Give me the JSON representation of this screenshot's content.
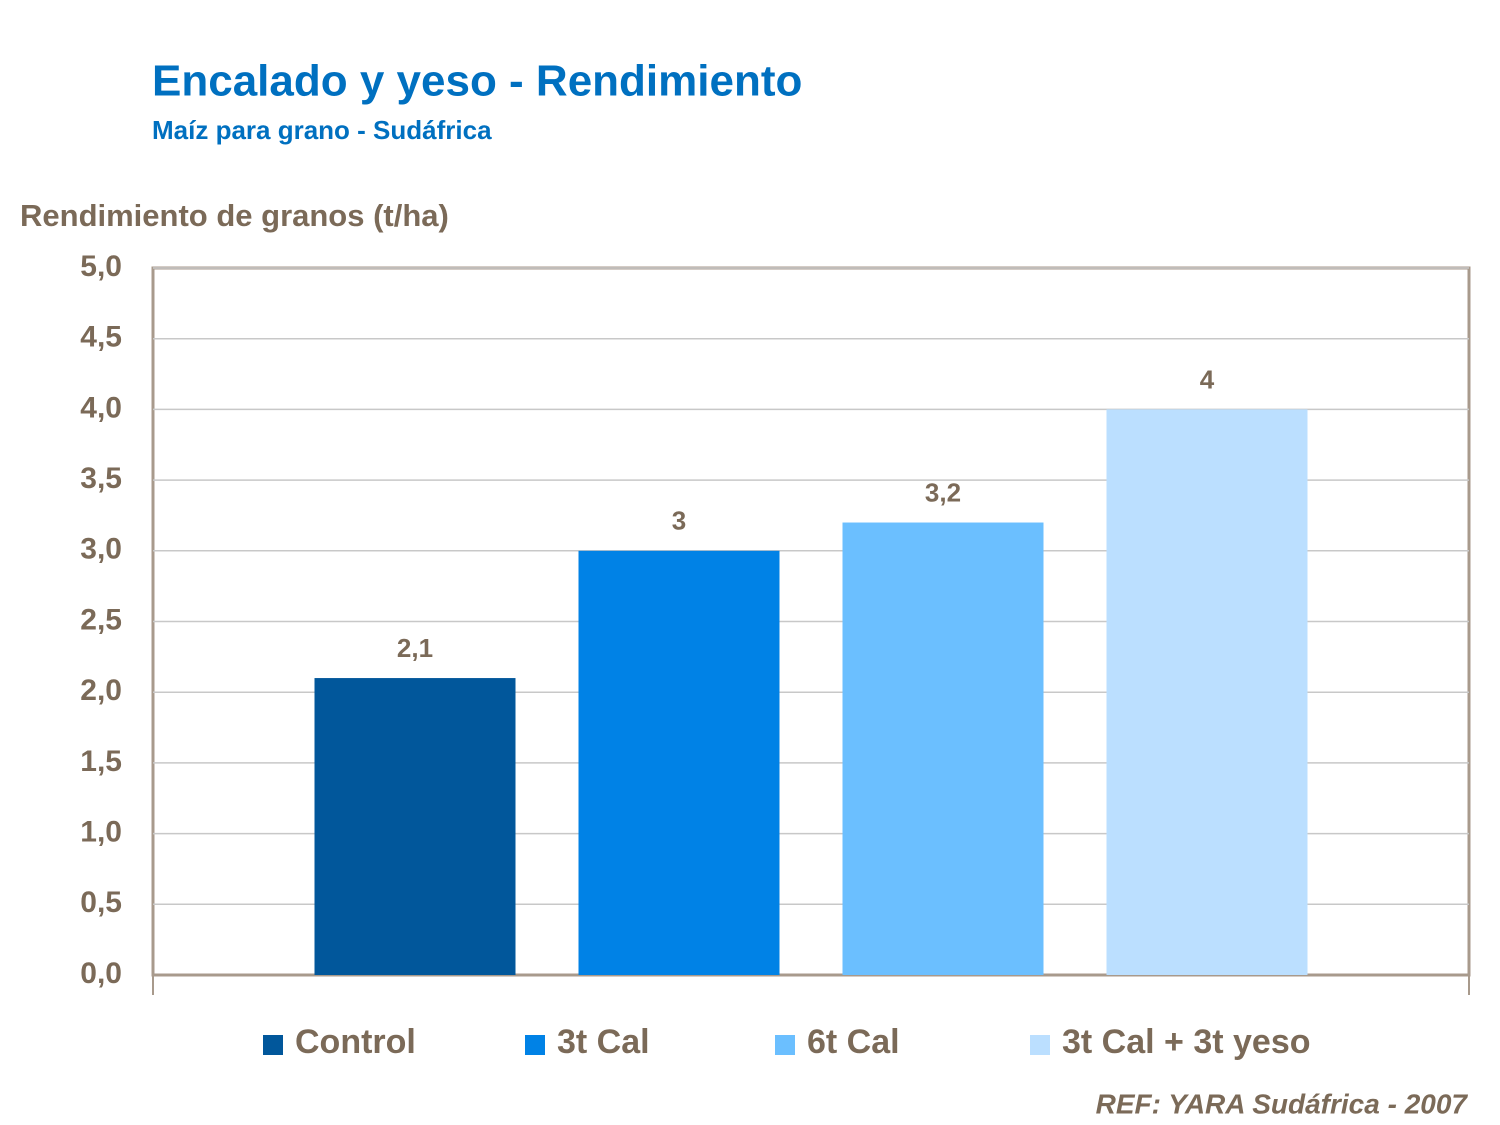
{
  "chart_data": {
    "type": "bar",
    "title": "Encalado y yeso - Rendimiento",
    "subtitle": "Maíz para grano - Sudáfrica",
    "y_label": "Rendimiento de granos (t/ha)",
    "source": "REF: YARA Sudáfrica - 2007",
    "series": [
      {
        "name": "Control",
        "color": "#01579b",
        "values": [
          2.1
        ],
        "value_labels": [
          "2,1"
        ]
      },
      {
        "name": "3t Cal",
        "color": "#0082e6",
        "values": [
          3
        ],
        "value_labels": [
          "3"
        ]
      },
      {
        "name": "6t Cal",
        "color": "#6bbfff",
        "values": [
          3.2
        ],
        "value_labels": [
          "3,2"
        ]
      },
      {
        "name": "3t Cal + 3t yeso",
        "color": "#bbdfff",
        "values": [
          4
        ],
        "value_labels": [
          "4"
        ]
      }
    ],
    "ylim": [
      0,
      5
    ],
    "yticks": [
      {
        "value": 0,
        "label": "0,0"
      },
      {
        "value": 0.5,
        "label": "0,5"
      },
      {
        "value": 1,
        "label": "1,0"
      },
      {
        "value": 1.5,
        "label": "1,5"
      },
      {
        "value": 2,
        "label": "2,0"
      },
      {
        "value": 2.5,
        "label": "2,5"
      },
      {
        "value": 3,
        "label": "3,0"
      },
      {
        "value": 3.5,
        "label": "3,5"
      },
      {
        "value": 4,
        "label": "4,0"
      },
      {
        "value": 4.5,
        "label": "4,5"
      },
      {
        "value": 5,
        "label": "5,0"
      }
    ],
    "grid": true,
    "legend": "bottom"
  }
}
